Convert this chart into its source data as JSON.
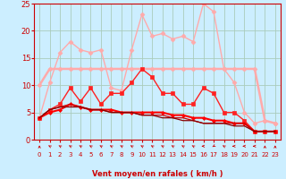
{
  "background_color": "#cceeff",
  "grid_color": "#aaccbb",
  "xlabel": "Vent moyen/en rafales ( km/h )",
  "xlim": [
    -0.5,
    23.5
  ],
  "ylim": [
    0,
    25
  ],
  "yticks": [
    0,
    5,
    10,
    15,
    20,
    25
  ],
  "xticks": [
    0,
    1,
    2,
    3,
    4,
    5,
    6,
    7,
    8,
    9,
    10,
    11,
    12,
    13,
    14,
    15,
    16,
    17,
    18,
    19,
    20,
    21,
    22,
    23
  ],
  "x": [
    0,
    1,
    2,
    3,
    4,
    5,
    6,
    7,
    8,
    9,
    10,
    11,
    12,
    13,
    14,
    15,
    16,
    17,
    18,
    19,
    20,
    21,
    22,
    23
  ],
  "lines": [
    {
      "y": [
        4.0,
        10.5,
        16.0,
        18.0,
        16.5,
        16.0,
        16.5,
        9.5,
        9.0,
        16.5,
        23.0,
        19.0,
        19.5,
        18.5,
        19.0,
        18.0,
        25.0,
        23.5,
        13.0,
        10.5,
        5.0,
        3.0,
        3.5,
        3.0
      ],
      "color": "#ffaaaa",
      "linewidth": 1.0,
      "marker": "D",
      "markersize": 2.5,
      "alpha": 1.0
    },
    {
      "y": [
        10.0,
        13.0,
        13.0,
        13.0,
        13.0,
        13.0,
        13.0,
        13.0,
        13.0,
        13.0,
        13.0,
        13.0,
        13.0,
        13.0,
        13.0,
        13.0,
        13.0,
        13.0,
        13.0,
        13.0,
        13.0,
        13.0,
        3.5,
        3.0
      ],
      "color": "#ffaaaa",
      "linewidth": 1.8,
      "marker": "D",
      "markersize": 2.5,
      "alpha": 1.0
    },
    {
      "y": [
        4.0,
        5.5,
        6.5,
        9.5,
        7.0,
        9.5,
        6.5,
        8.5,
        8.5,
        10.5,
        13.0,
        11.5,
        8.5,
        8.5,
        6.5,
        6.5,
        9.5,
        8.5,
        5.0,
        5.0,
        3.5,
        1.5,
        1.5,
        1.5
      ],
      "color": "#ff2222",
      "linewidth": 1.0,
      "marker": "s",
      "markersize": 2.5,
      "alpha": 1.0
    },
    {
      "y": [
        4.0,
        5.0,
        5.5,
        6.5,
        6.0,
        5.5,
        5.5,
        5.5,
        5.0,
        5.0,
        5.0,
        5.0,
        5.0,
        4.5,
        4.5,
        4.0,
        4.0,
        3.5,
        3.5,
        3.0,
        3.0,
        1.5,
        1.5,
        1.5
      ],
      "color": "#ff0000",
      "linewidth": 1.5,
      "marker": "D",
      "markersize": 2,
      "alpha": 1.0
    },
    {
      "y": [
        4.0,
        5.5,
        6.0,
        6.5,
        6.0,
        5.5,
        5.5,
        5.0,
        5.0,
        5.0,
        4.5,
        4.5,
        4.5,
        4.0,
        4.0,
        3.5,
        3.0,
        3.0,
        3.0,
        3.0,
        3.0,
        1.5,
        1.5,
        1.5
      ],
      "color": "#cc0000",
      "linewidth": 0.9,
      "marker": null,
      "markersize": 0,
      "alpha": 1.0
    },
    {
      "y": [
        4.0,
        5.5,
        6.0,
        6.0,
        6.0,
        5.5,
        5.5,
        5.0,
        5.0,
        5.0,
        4.5,
        4.5,
        4.0,
        4.0,
        3.5,
        3.5,
        3.0,
        3.0,
        3.0,
        2.5,
        2.5,
        1.5,
        1.5,
        1.5
      ],
      "color": "#880000",
      "linewidth": 0.9,
      "marker": null,
      "markersize": 0,
      "alpha": 1.0
    }
  ],
  "arrow_angles_deg": [
    180,
    225,
    225,
    225,
    225,
    225,
    225,
    225,
    225,
    225,
    225,
    225,
    225,
    225,
    225,
    225,
    270,
    315,
    225,
    270,
    270,
    270,
    180,
    180
  ],
  "tick_color": "#cc0000",
  "label_color": "#cc0000"
}
